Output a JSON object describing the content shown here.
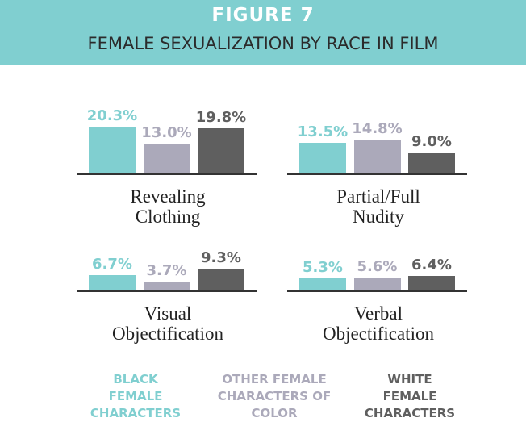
{
  "chart_data": {
    "type": "bar",
    "title": "FIGURE 7",
    "subtitle": "FEMALE SEXUALIZATION BY RACE IN FILM",
    "categories": [
      "Revealing Clothing",
      "Partial/Full Nudity",
      "Visual Objectification",
      "Verbal Objectification"
    ],
    "series": [
      {
        "name": "BLACK FEMALE CHARACTERS",
        "color": "#80cfd0",
        "values": [
          20.3,
          13.5,
          6.7,
          5.3
        ],
        "value_labels": [
          "20.3%",
          "13.5%",
          "6.7%",
          "5.3%"
        ]
      },
      {
        "name": "OTHER FEMALE CHARACTERS OF COLOR",
        "color": "#aba9ba",
        "values": [
          13.0,
          14.8,
          3.7,
          5.6
        ],
        "value_labels": [
          "13.0%",
          "14.8%",
          "3.7%",
          "5.6%"
        ]
      },
      {
        "name": "WHITE FEMALE CHARACTERS",
        "color": "#5f5f5f",
        "values": [
          19.8,
          9.0,
          9.3,
          6.4
        ],
        "value_labels": [
          "19.8%",
          "9.0%",
          "9.3%",
          "6.4%"
        ]
      }
    ]
  }
}
